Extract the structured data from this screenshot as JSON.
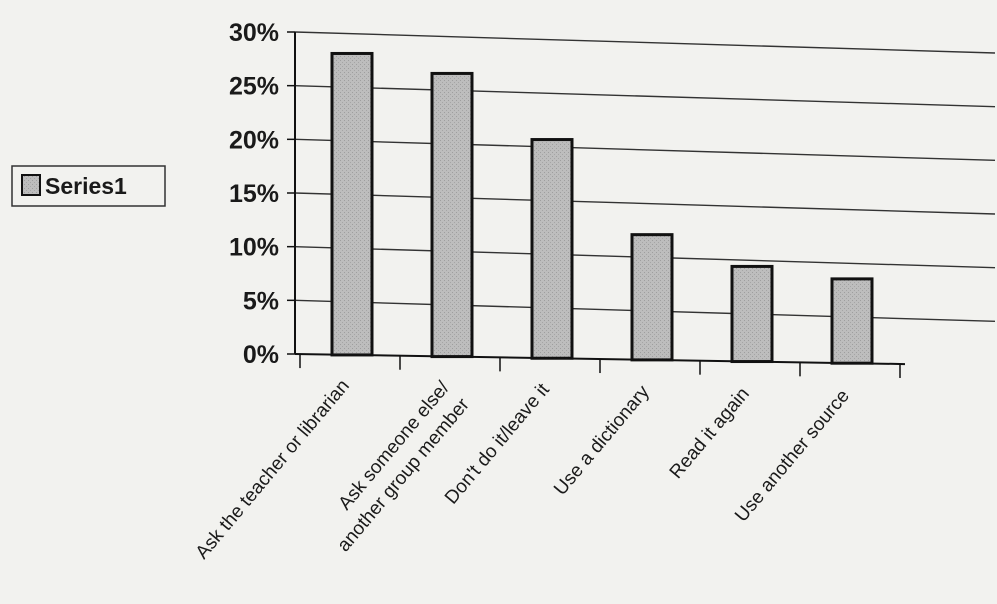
{
  "chart_data": {
    "type": "bar",
    "title": "",
    "xlabel": "",
    "ylabel": "",
    "ylim": [
      0,
      0.3
    ],
    "yticks": [
      "0%",
      "5%",
      "10%",
      "15%",
      "20%",
      "25%",
      "30%"
    ],
    "grid": true,
    "legend": {
      "placement": "left",
      "entries": [
        "Series1"
      ]
    },
    "categories": [
      [
        "Ask the teacher or librarian"
      ],
      [
        "Ask someone else/",
        "another group member"
      ],
      [
        "Don't do it/leave it"
      ],
      [
        "Use a dictionary"
      ],
      [
        "Read it again"
      ],
      [
        "Use another source"
      ]
    ],
    "series": [
      {
        "name": "Series1",
        "values": [
          0.28,
          0.26,
          0.197,
          0.107,
          0.076,
          0.063
        ]
      }
    ],
    "colors": {
      "bar_fill": "#b9b9b9",
      "bar_stroke": "#111111",
      "grid": "#333333",
      "background": "#f2f2ef"
    }
  }
}
